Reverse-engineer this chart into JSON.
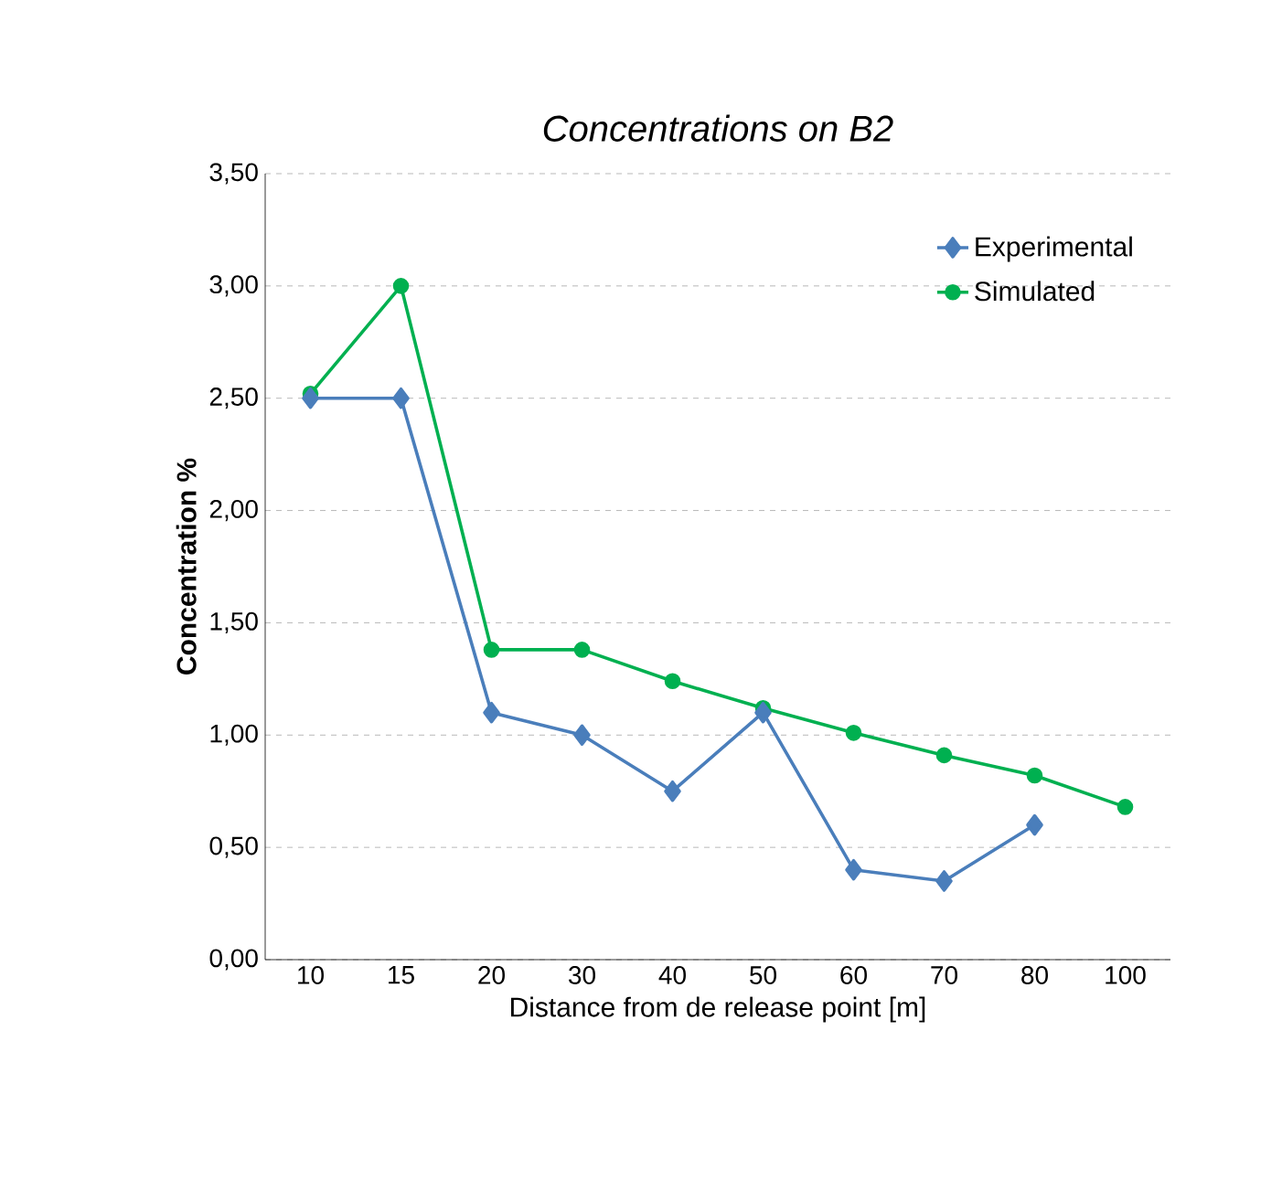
{
  "chart_data": {
    "type": "line",
    "title": "Concentrations on B2",
    "xlabel": "Distance from de release point [m]",
    "ylabel": "Concentration %",
    "categories": [
      "10",
      "15",
      "20",
      "30",
      "40",
      "50",
      "60",
      "70",
      "80",
      "100"
    ],
    "series": [
      {
        "name": "Experimental",
        "color": "#4a7ebb",
        "marker": "diamond",
        "values": [
          2.5,
          2.5,
          1.1,
          1.0,
          0.75,
          1.1,
          0.4,
          0.35,
          0.6,
          null
        ]
      },
      {
        "name": "Simulated",
        "color": "#00b050",
        "marker": "circle",
        "values": [
          2.52,
          3.0,
          1.38,
          1.38,
          1.24,
          1.12,
          1.01,
          0.91,
          0.82,
          0.68
        ]
      }
    ],
    "ylim": [
      0,
      3.5
    ],
    "yticks": [
      {
        "value": 0,
        "label": "0,00"
      },
      {
        "value": 0.5,
        "label": "0,50"
      },
      {
        "value": 1,
        "label": "1,00"
      },
      {
        "value": 1.5,
        "label": "1,50"
      },
      {
        "value": 2,
        "label": "2,00"
      },
      {
        "value": 2.5,
        "label": "2,50"
      },
      {
        "value": 3,
        "label": "3,00"
      },
      {
        "value": 3.5,
        "label": "3,50"
      }
    ],
    "grid": "y",
    "legend": "top right",
    "line_style": "solid"
  }
}
